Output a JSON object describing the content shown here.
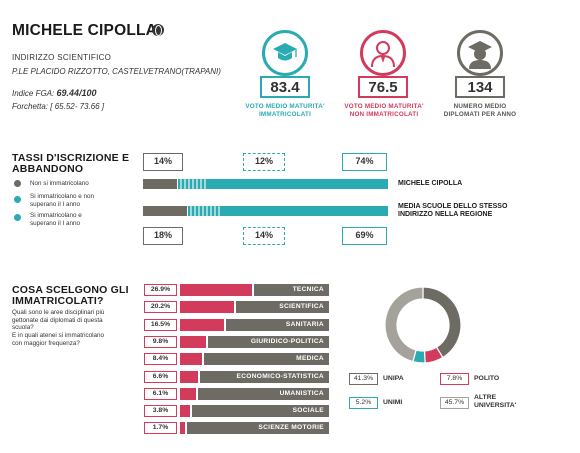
{
  "school": {
    "name": "MICHELE CIPOLLA",
    "type": "INDIRIZZO SCIENTIFICO",
    "address": "P.LE PLACIDO RIZZOTTO, CASTELVETRANO(TRAPANI)",
    "fga_label": "Indice FGA:",
    "fga_value": "69.44/100",
    "forchetta_label": "Forchetta:",
    "forchetta_value": "[ 65.52- 73.66 ]"
  },
  "stats": [
    {
      "value": "83.4",
      "label": "VOTO MEDIO MATURITA' IMMATRICOLATI",
      "color": "#2aabb2",
      "icon": "graduate-icon"
    },
    {
      "value": "76.5",
      "label": "VOTO MEDIO MATURITA' NON IMMATRICOLATI",
      "color": "#d23b5c",
      "icon": "person-icon"
    },
    {
      "value": "134",
      "label": "NUMERO MEDIO DIPLOMATI PER ANNO",
      "color": "#6e6a64",
      "icon": "graduate-icon"
    }
  ],
  "iscrizione": {
    "title_line1": "TASSI D'ISCRIZIONE E",
    "title_line2": "ABBANDONO",
    "legend": [
      {
        "text": "Non si immatricolano",
        "color": "#6e6a64"
      },
      {
        "text_line1": "Si immatricolano e non",
        "text_line2": "superano il I anno",
        "color": "#2aabb2"
      },
      {
        "text_line1": "Si immatricolano e",
        "text_line2": "superano il I anno",
        "color": "#2aabb2"
      }
    ],
    "school_row": {
      "label": "MICHELE CIPOLLA",
      "non_immatricolati": 14,
      "non_superano": 12,
      "superano": 74,
      "pct_labels": [
        "14%",
        "12%",
        "74%"
      ]
    },
    "region_row": {
      "label_line1": "MEDIA SCUOLE DELLO STESSO",
      "label_line2": "INDIRIZZO NELLA REGIONE",
      "non_immatricolati": 18,
      "non_superano": 14,
      "superano": 69,
      "pct_labels": [
        "18%",
        "14%",
        "69%"
      ]
    },
    "colors": {
      "grey": "#6e6a64",
      "teal": "#2aabb2"
    }
  },
  "scelte": {
    "title_line1": "COSA SCELGONO GLI",
    "title_line2": "IMMATRICOLATI?",
    "question1": [
      "Quali sono le aree disciplinari più",
      "gettonate dai diplomati di questa",
      "scuola?"
    ],
    "question2": [
      "E in quali atenei si immatricolano",
      "con maggior frequenza?"
    ],
    "areas": [
      {
        "pct": "26.9%",
        "value": 26.9,
        "name": "TECNICA"
      },
      {
        "pct": "20.2%",
        "value": 20.2,
        "name": "SCIENTIFICA"
      },
      {
        "pct": "16.5%",
        "value": 16.5,
        "name": "SANITARIA"
      },
      {
        "pct": "9.8%",
        "value": 9.8,
        "name": "GIURIDICO-POLITICA"
      },
      {
        "pct": "8.4%",
        "value": 8.4,
        "name": "MEDICA"
      },
      {
        "pct": "6.6%",
        "value": 6.6,
        "name": "ECONOMICO-STATISTICA"
      },
      {
        "pct": "6.1%",
        "value": 6.1,
        "name": "UMANISTICA"
      },
      {
        "pct": "3.8%",
        "value": 3.8,
        "name": "SOCIALE"
      },
      {
        "pct": "1.7%",
        "value": 1.7,
        "name": "SCIENZE MOTORIE"
      }
    ]
  },
  "chart_data": {
    "type": "pie",
    "donut": true,
    "slices": [
      {
        "name": "UNIPA",
        "label": "41.3%",
        "value": 41.3,
        "color": "#6e6a64"
      },
      {
        "name": "POLITO",
        "label": "7.8%",
        "value": 7.8,
        "color": "#d23b5c"
      },
      {
        "name": "UNIMI",
        "label": "5.2%",
        "value": 5.2,
        "color": "#2aabb2"
      },
      {
        "name_line1": "ALTRE",
        "name_line2": "UNIVERSITA'",
        "label": "45.7%",
        "value": 45.7,
        "color": "#a5a19b"
      }
    ]
  }
}
